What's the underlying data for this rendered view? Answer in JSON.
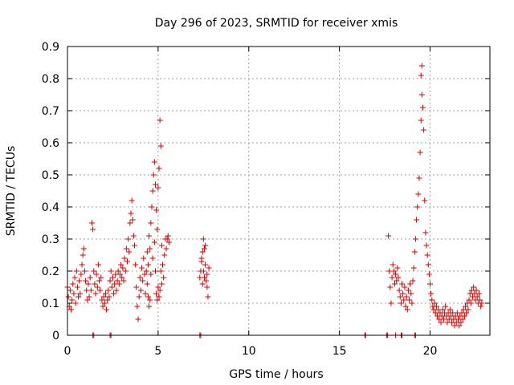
{
  "chart_data": {
    "type": "scatter",
    "title": "Day 296 of 2023, SRMTID for receiver xmis",
    "xlabel": "GPS time / hours",
    "ylabel": "SRMTID / TECUs",
    "xlim": [
      0,
      23.3
    ],
    "ylim": [
      0,
      0.9
    ],
    "x_ticks": [
      0,
      5,
      10,
      15,
      20
    ],
    "x_tick_labels": [
      "0",
      "5",
      "10",
      "15",
      "20"
    ],
    "y_ticks": [
      0,
      0.1,
      0.2,
      0.3,
      0.4,
      0.5,
      0.6,
      0.7,
      0.8,
      0.9
    ],
    "y_tick_labels": [
      "0",
      "0.1",
      "0.2",
      "0.3",
      "0.4",
      "0.5",
      "0.6",
      "0.7",
      "0.8",
      "0.9"
    ],
    "grid": true,
    "marker": "plus",
    "color": "#e00000",
    "series": [
      {
        "name": "SRMTID",
        "points": [
          [
            0.0,
            0.15
          ],
          [
            0.05,
            0.12
          ],
          [
            0.1,
            0.09
          ],
          [
            0.15,
            0.14
          ],
          [
            0.2,
            0.08
          ],
          [
            0.25,
            0.11
          ],
          [
            0.3,
            0.16
          ],
          [
            0.35,
            0.13
          ],
          [
            0.4,
            0.18
          ],
          [
            0.45,
            0.1
          ],
          [
            0.5,
            0.2
          ],
          [
            0.55,
            0.15
          ],
          [
            0.6,
            0.12
          ],
          [
            0.65,
            0.17
          ],
          [
            0.7,
            0.13
          ],
          [
            0.75,
            0.19
          ],
          [
            0.8,
            0.22
          ],
          [
            0.85,
            0.25
          ],
          [
            0.9,
            0.27
          ],
          [
            0.95,
            0.2
          ],
          [
            1.0,
            0.17
          ],
          [
            1.05,
            0.14
          ],
          [
            1.1,
            0.11
          ],
          [
            1.15,
            0.16
          ],
          [
            1.2,
            0.12
          ],
          [
            1.25,
            0.18
          ],
          [
            1.3,
            0.14
          ],
          [
            1.35,
            0.35
          ],
          [
            1.4,
            0.33
          ],
          [
            1.45,
            0.2
          ],
          [
            1.5,
            0.16
          ],
          [
            1.55,
            0.13
          ],
          [
            1.6,
            0.19
          ],
          [
            1.65,
            0.15
          ],
          [
            1.7,
            0.22
          ],
          [
            1.75,
            0.17
          ],
          [
            1.8,
            0.14
          ],
          [
            1.85,
            0.18
          ],
          [
            1.9,
            0.11
          ],
          [
            1.95,
            0.09
          ],
          [
            2.0,
            0.12
          ],
          [
            2.05,
            0.1
          ],
          [
            2.1,
            0.13
          ],
          [
            2.15,
            0.08
          ],
          [
            2.2,
            0.11
          ],
          [
            2.25,
            0.14
          ],
          [
            2.3,
            0.12
          ],
          [
            2.35,
            0.17
          ],
          [
            2.4,
            0.2
          ],
          [
            2.45,
            0.15
          ],
          [
            2.5,
            0.18
          ],
          [
            2.55,
            0.13
          ],
          [
            2.6,
            0.16
          ],
          [
            2.65,
            0.19
          ],
          [
            2.7,
            0.14
          ],
          [
            2.75,
            0.17
          ],
          [
            2.8,
            0.2
          ],
          [
            2.85,
            0.16
          ],
          [
            2.9,
            0.19
          ],
          [
            2.95,
            0.22
          ],
          [
            3.0,
            0.18
          ],
          [
            3.05,
            0.21
          ],
          [
            3.1,
            0.17
          ],
          [
            3.15,
            0.24
          ],
          [
            3.2,
            0.2
          ],
          [
            3.25,
            0.27
          ],
          [
            3.3,
            0.23
          ],
          [
            3.35,
            0.3
          ],
          [
            3.4,
            0.26
          ],
          [
            3.45,
            0.35
          ],
          [
            3.5,
            0.38
          ],
          [
            3.55,
            0.42
          ],
          [
            3.6,
            0.36
          ],
          [
            3.65,
            0.31
          ],
          [
            3.7,
            0.28
          ],
          [
            3.75,
            0.22
          ],
          [
            3.8,
            0.15
          ],
          [
            3.85,
            0.09
          ],
          [
            3.9,
            0.05
          ],
          [
            3.95,
            0.12
          ],
          [
            4.0,
            0.18
          ],
          [
            4.05,
            0.14
          ],
          [
            4.1,
            0.21
          ],
          [
            4.15,
            0.17
          ],
          [
            4.2,
            0.24
          ],
          [
            4.25,
            0.19
          ],
          [
            4.3,
            0.13
          ],
          [
            4.35,
            0.2
          ],
          [
            4.4,
            0.26
          ],
          [
            4.45,
            0.22
          ],
          [
            4.5,
            0.31
          ],
          [
            4.55,
            0.27
          ],
          [
            4.6,
            0.35
          ],
          [
            4.65,
            0.4
          ],
          [
            4.7,
            0.45
          ],
          [
            4.75,
            0.5
          ],
          [
            4.8,
            0.54
          ],
          [
            4.85,
            0.47
          ],
          [
            4.9,
            0.39
          ],
          [
            4.95,
            0.33
          ],
          [
            5.0,
            0.46
          ],
          [
            5.05,
            0.52
          ],
          [
            5.1,
            0.67
          ],
          [
            5.15,
            0.59
          ],
          [
            5.2,
            0.28
          ],
          [
            5.25,
            0.22
          ],
          [
            5.3,
            0.18
          ],
          [
            5.35,
            0.25
          ],
          [
            5.4,
            0.3
          ],
          [
            5.45,
            0.27
          ],
          [
            5.5,
            0.3
          ],
          [
            5.55,
            0.31
          ],
          [
            5.6,
            0.29
          ],
          [
            4.9,
            0.13
          ],
          [
            4.95,
            0.11
          ],
          [
            5.0,
            0.15
          ],
          [
            5.05,
            0.12
          ],
          [
            5.1,
            0.14
          ],
          [
            5.15,
            0.2
          ],
          [
            5.2,
            0.16
          ],
          [
            4.5,
            0.09
          ],
          [
            4.55,
            0.11
          ],
          [
            4.4,
            0.16
          ],
          [
            4.45,
            0.12
          ],
          [
            4.6,
            0.19
          ],
          [
            4.7,
            0.24
          ],
          [
            4.8,
            0.29
          ],
          [
            4.85,
            0.2
          ],
          [
            7.3,
            0.18
          ],
          [
            7.35,
            0.2
          ],
          [
            7.4,
            0.23
          ],
          [
            7.45,
            0.26
          ],
          [
            7.5,
            0.3
          ],
          [
            7.55,
            0.27
          ],
          [
            7.6,
            0.22
          ],
          [
            7.65,
            0.17
          ],
          [
            7.7,
            0.15
          ],
          [
            7.75,
            0.12
          ],
          [
            7.5,
            0.2
          ],
          [
            7.45,
            0.16
          ],
          [
            7.6,
            0.28
          ],
          [
            7.8,
            0.21
          ],
          [
            7.4,
            0.24
          ],
          [
            7.55,
            0.18
          ],
          [
            7.7,
            0.19
          ],
          [
            17.7,
            0.31
          ],
          [
            17.75,
            0.2
          ],
          [
            17.8,
            0.15
          ],
          [
            17.85,
            0.1
          ],
          [
            17.9,
            0.18
          ],
          [
            17.95,
            0.22
          ],
          [
            18.0,
            0.2
          ],
          [
            18.05,
            0.16
          ],
          [
            18.1,
            0.19
          ],
          [
            18.15,
            0.17
          ],
          [
            18.2,
            0.21
          ],
          [
            18.25,
            0.18
          ],
          [
            18.3,
            0.14
          ],
          [
            18.35,
            0.12
          ],
          [
            18.4,
            0.1
          ],
          [
            18.45,
            0.16
          ],
          [
            18.5,
            0.13
          ],
          [
            18.55,
            0.11
          ],
          [
            18.6,
            0.15
          ],
          [
            18.65,
            0.09
          ],
          [
            18.7,
            0.12
          ],
          [
            18.75,
            0.08
          ],
          [
            18.8,
            0.14
          ],
          [
            18.85,
            0.11
          ],
          [
            18.9,
            0.16
          ],
          [
            18.95,
            0.13
          ],
          [
            19.0,
            0.1
          ],
          [
            19.05,
            0.17
          ],
          [
            19.1,
            0.21
          ],
          [
            19.15,
            0.26
          ],
          [
            19.2,
            0.3
          ],
          [
            19.25,
            0.36
          ],
          [
            19.3,
            0.4
          ],
          [
            19.35,
            0.44
          ],
          [
            19.4,
            0.49
          ],
          [
            19.45,
            0.57
          ],
          [
            19.5,
            0.67
          ],
          [
            19.55,
            0.75
          ],
          [
            19.5,
            0.81
          ],
          [
            19.55,
            0.84
          ],
          [
            19.6,
            0.71
          ],
          [
            19.65,
            0.64
          ],
          [
            19.7,
            0.42
          ],
          [
            19.75,
            0.32
          ],
          [
            19.8,
            0.28
          ],
          [
            19.85,
            0.25
          ],
          [
            19.9,
            0.22
          ],
          [
            19.95,
            0.19
          ],
          [
            20.0,
            0.16
          ],
          [
            20.05,
            0.13
          ],
          [
            20.1,
            0.11
          ],
          [
            20.15,
            0.09
          ],
          [
            20.2,
            0.08
          ],
          [
            20.25,
            0.1
          ],
          [
            20.3,
            0.07
          ],
          [
            20.35,
            0.09
          ],
          [
            20.4,
            0.06
          ],
          [
            20.45,
            0.08
          ],
          [
            20.5,
            0.05
          ],
          [
            20.55,
            0.07
          ],
          [
            20.6,
            0.04
          ],
          [
            20.65,
            0.06
          ],
          [
            20.7,
            0.08
          ],
          [
            20.75,
            0.05
          ],
          [
            20.8,
            0.07
          ],
          [
            20.85,
            0.09
          ],
          [
            20.9,
            0.06
          ],
          [
            20.95,
            0.04
          ],
          [
            21.0,
            0.07
          ],
          [
            21.05,
            0.05
          ],
          [
            21.1,
            0.08
          ],
          [
            21.15,
            0.06
          ],
          [
            21.2,
            0.04
          ],
          [
            21.25,
            0.07
          ],
          [
            21.3,
            0.05
          ],
          [
            21.35,
            0.03
          ],
          [
            21.4,
            0.06
          ],
          [
            21.45,
            0.04
          ],
          [
            21.5,
            0.07
          ],
          [
            21.55,
            0.05
          ],
          [
            21.6,
            0.03
          ],
          [
            21.65,
            0.06
          ],
          [
            21.7,
            0.04
          ],
          [
            21.75,
            0.07
          ],
          [
            21.8,
            0.05
          ],
          [
            21.85,
            0.08
          ],
          [
            21.9,
            0.06
          ],
          [
            21.95,
            0.09
          ],
          [
            22.0,
            0.07
          ],
          [
            22.05,
            0.1
          ],
          [
            22.1,
            0.08
          ],
          [
            22.15,
            0.11
          ],
          [
            22.2,
            0.13
          ],
          [
            22.25,
            0.1
          ],
          [
            22.3,
            0.14
          ],
          [
            22.35,
            0.12
          ],
          [
            22.4,
            0.15
          ],
          [
            22.45,
            0.13
          ],
          [
            22.5,
            0.11
          ],
          [
            22.55,
            0.14
          ],
          [
            22.6,
            0.12
          ],
          [
            22.65,
            0.1
          ],
          [
            22.7,
            0.13
          ],
          [
            22.75,
            0.11
          ],
          [
            22.8,
            0.09
          ],
          [
            22.85,
            0.1
          ]
        ]
      },
      {
        "name": "zero markers",
        "points": [
          [
            1.4,
            0
          ],
          [
            1.45,
            0
          ],
          [
            2.35,
            0
          ],
          [
            2.4,
            0
          ],
          [
            7.3,
            0
          ],
          [
            7.35,
            0
          ],
          [
            16.4,
            0
          ],
          [
            16.45,
            0
          ],
          [
            17.6,
            0
          ],
          [
            17.65,
            0
          ],
          [
            18.1,
            0
          ],
          [
            18.4,
            0
          ],
          [
            18.45,
            0
          ],
          [
            19.15,
            0
          ],
          [
            19.2,
            0
          ]
        ]
      }
    ]
  }
}
